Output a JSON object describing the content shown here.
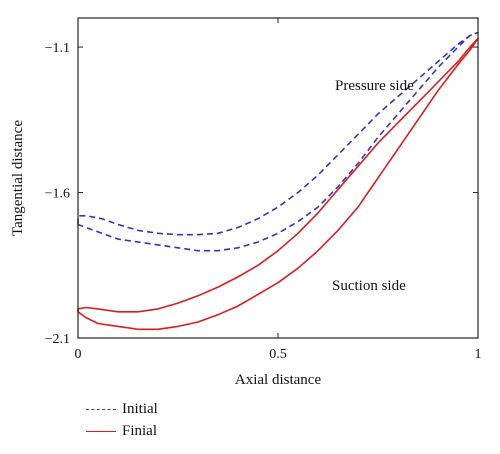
{
  "chart_data": {
    "type": "line",
    "xlabel": "Axial distance",
    "ylabel": "Tangential distance",
    "xlim": [
      0,
      1
    ],
    "ylim": [
      -2.1,
      -1.0
    ],
    "xticks": [
      "0",
      "0.5",
      "1"
    ],
    "yticks": [
      "−1.1",
      "−1.6",
      "−2.1"
    ],
    "ytick_values": [
      -1.1,
      -1.6,
      -2.1
    ],
    "xtick_values": [
      0,
      0.5,
      1
    ],
    "annotations": [
      "Pressure side",
      "Suction side"
    ],
    "legend_position": "bottom-left, below plot",
    "series": [
      {
        "name": "Initial",
        "style": "dashed",
        "color": "#2e35c8",
        "x": [
          0.0,
          0.0,
          0.02,
          0.06,
          0.1,
          0.15,
          0.2,
          0.25,
          0.3,
          0.35,
          0.4,
          0.45,
          0.5,
          0.55,
          0.6,
          0.65,
          0.7,
          0.75,
          0.8,
          0.85,
          0.9,
          0.95,
          0.98,
          1.0,
          1.0,
          0.98,
          0.95,
          0.9,
          0.85,
          0.8,
          0.75,
          0.7,
          0.65,
          0.6,
          0.55,
          0.5,
          0.45,
          0.4,
          0.35,
          0.3,
          0.25,
          0.2,
          0.15,
          0.1,
          0.06,
          0.02,
          0.0
        ],
        "y": [
          -1.71,
          -1.68,
          -1.68,
          -1.69,
          -1.71,
          -1.73,
          -1.74,
          -1.745,
          -1.745,
          -1.74,
          -1.72,
          -1.69,
          -1.65,
          -1.6,
          -1.54,
          -1.47,
          -1.4,
          -1.33,
          -1.27,
          -1.21,
          -1.15,
          -1.09,
          -1.06,
          -1.05,
          -1.05,
          -1.06,
          -1.1,
          -1.17,
          -1.25,
          -1.33,
          -1.41,
          -1.5,
          -1.58,
          -1.65,
          -1.7,
          -1.74,
          -1.77,
          -1.79,
          -1.8,
          -1.8,
          -1.79,
          -1.78,
          -1.77,
          -1.76,
          -1.74,
          -1.72,
          -1.71
        ]
      },
      {
        "name": "Finial",
        "style": "solid",
        "color": "#d81e1e",
        "x": [
          0.0,
          0.02,
          0.05,
          0.1,
          0.15,
          0.2,
          0.25,
          0.3,
          0.35,
          0.4,
          0.45,
          0.5,
          0.55,
          0.6,
          0.65,
          0.7,
          0.75,
          0.8,
          0.85,
          0.9,
          0.95,
          0.98,
          1.0,
          1.0,
          0.98,
          0.95,
          0.9,
          0.85,
          0.8,
          0.75,
          0.7,
          0.65,
          0.6,
          0.55,
          0.5,
          0.45,
          0.4,
          0.35,
          0.3,
          0.25,
          0.2,
          0.15,
          0.1,
          0.05,
          0.02,
          0.0
        ],
        "y": [
          -2.0,
          -1.995,
          -2.0,
          -2.01,
          -2.01,
          -2.0,
          -1.98,
          -1.955,
          -1.925,
          -1.89,
          -1.85,
          -1.8,
          -1.74,
          -1.67,
          -1.59,
          -1.51,
          -1.43,
          -1.36,
          -1.29,
          -1.22,
          -1.15,
          -1.1,
          -1.07,
          -1.07,
          -1.11,
          -1.16,
          -1.25,
          -1.35,
          -1.45,
          -1.55,
          -1.65,
          -1.73,
          -1.8,
          -1.86,
          -1.91,
          -1.95,
          -1.99,
          -2.02,
          -2.045,
          -2.06,
          -2.07,
          -2.07,
          -2.06,
          -2.05,
          -2.03,
          -2.01
        ]
      }
    ]
  }
}
